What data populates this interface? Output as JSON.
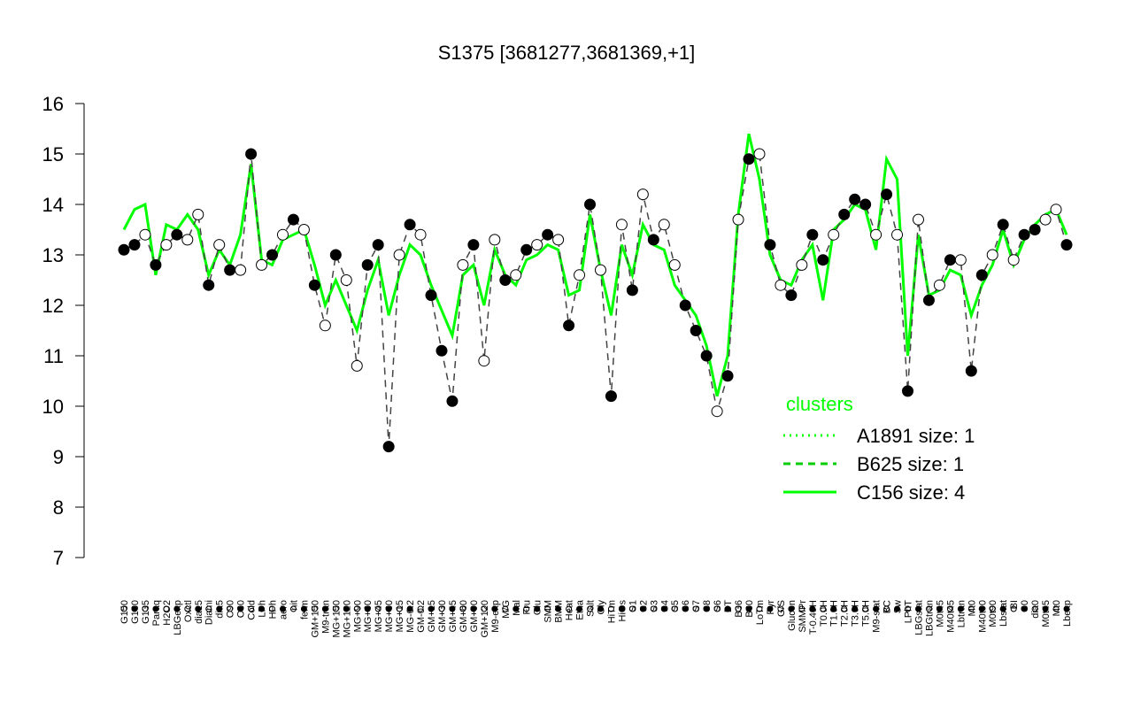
{
  "chart_data": {
    "type": "line",
    "title": "S1375 [3681277,3681369,+1]",
    "ylim": [
      7,
      16
    ],
    "yticks": [
      7,
      8,
      9,
      10,
      11,
      12,
      13,
      14,
      15,
      16
    ],
    "categories": [
      "G150",
      "G180",
      "G135",
      "Paraq",
      "H2O2",
      "LBGexp",
      "Oxctl",
      "dia15",
      "Diami",
      "dia5",
      "C90",
      "C30",
      "Cold",
      "LPh",
      "HPh",
      "aero",
      "nit",
      "ferm",
      "GM+150",
      "M9-tran",
      "MG+150",
      "MG+120",
      "MG+90",
      "MG+60",
      "MG+45",
      "MG+30",
      "MG+15",
      "MG-0.2",
      "GM-0.2",
      "GM+15",
      "GM+30",
      "GM+45",
      "GM+60",
      "GM+90",
      "GM+120",
      "M9-exp",
      "M/G",
      "Mal",
      "Fru",
      "Glu",
      "SMM",
      "BMM",
      "Heat",
      "Etha",
      "Salt",
      "Gly",
      "HiTm",
      "HiOs",
      "S1",
      "S2",
      "S3",
      "S4",
      "S5",
      "S6",
      "S7",
      "S8",
      "S6",
      "BT",
      "B36",
      "B60",
      "LoTm",
      "Pyr",
      "G/S",
      "Glucon",
      "SMMPr",
      "T-0.40H",
      "T0.0H",
      "T1.0H",
      "T2.0H",
      "T3.0H",
      "T5.0H",
      "M9-stat",
      "BC",
      "Sw",
      "LPhT",
      "LBGstat",
      "LBGtran",
      "M0t45",
      "M40t45",
      "Lbtran",
      "Mt0",
      "M40t90",
      "M0t90",
      "Lbstat",
      "BI",
      "S0",
      "dia0",
      "M0t45",
      "Mt0",
      "Lbexp"
    ],
    "legend_title": "clusters",
    "series": [
      {
        "name": "A1891 size: 1",
        "color": "#00ff00",
        "style": "dotted",
        "values": [
          13.1,
          13.2,
          13.4,
          12.8,
          13.2,
          13.4,
          13.3,
          13.8,
          12.4,
          13.2,
          12.7,
          12.7,
          15.0,
          12.8,
          13.0,
          13.4,
          13.7,
          13.5,
          12.4,
          11.6,
          13.0,
          12.5,
          10.8,
          12.8,
          13.2,
          9.2,
          13.0,
          13.6,
          13.4,
          12.2,
          11.1,
          10.1,
          12.8,
          13.2,
          10.9,
          13.3,
          12.5,
          12.6,
          13.1,
          13.2,
          13.4,
          13.3,
          11.6,
          12.6,
          14.0,
          12.7,
          10.2,
          13.6,
          12.3,
          14.2,
          13.3,
          13.6,
          12.8,
          12.0,
          11.5,
          11.0,
          9.9,
          10.6,
          13.7,
          14.9,
          15.0,
          13.2,
          12.4,
          12.2,
          12.8,
          13.4,
          12.9,
          13.4,
          13.8,
          14.1,
          14.0,
          13.4,
          14.2,
          13.4,
          10.3,
          13.7,
          12.1,
          12.4,
          12.9,
          12.9,
          10.7,
          12.6,
          13.0,
          13.6,
          12.9,
          13.4,
          13.5,
          13.7,
          13.9,
          13.2
        ]
      },
      {
        "name": "B625 size: 1",
        "color": "#00cc00",
        "style": "dashed",
        "values": [
          13.1,
          13.2,
          13.4,
          12.8,
          13.2,
          13.4,
          13.3,
          13.8,
          12.4,
          13.2,
          12.7,
          12.7,
          15.0,
          12.8,
          13.0,
          13.4,
          13.7,
          13.5,
          12.4,
          11.6,
          13.0,
          12.5,
          10.8,
          12.8,
          13.2,
          9.2,
          13.0,
          13.6,
          13.4,
          12.2,
          11.1,
          10.1,
          12.8,
          13.2,
          10.9,
          13.3,
          12.5,
          12.6,
          13.1,
          13.2,
          13.4,
          13.3,
          11.6,
          12.6,
          14.0,
          12.7,
          10.2,
          13.6,
          12.3,
          14.2,
          13.3,
          13.6,
          12.8,
          12.0,
          11.5,
          11.0,
          9.9,
          10.6,
          13.7,
          14.9,
          15.0,
          13.2,
          12.4,
          12.2,
          12.8,
          13.4,
          12.9,
          13.4,
          13.8,
          14.1,
          14.0,
          13.4,
          14.2,
          13.4,
          10.3,
          13.7,
          12.1,
          12.4,
          12.9,
          12.9,
          10.7,
          12.6,
          13.0,
          13.6,
          12.9,
          13.4,
          13.5,
          13.7,
          13.9,
          13.2
        ],
        "filled": [
          true,
          true,
          false,
          true,
          false,
          true,
          false,
          false,
          true,
          false,
          true,
          false,
          true,
          false,
          true,
          false,
          true,
          false,
          true,
          false,
          true,
          false,
          false,
          true,
          true,
          true,
          false,
          true,
          false,
          true,
          true,
          true,
          false,
          true,
          false,
          false,
          true,
          false,
          true,
          false,
          true,
          false,
          true,
          false,
          true,
          false,
          true,
          false,
          true,
          false,
          true,
          false,
          false,
          true,
          true,
          true,
          false,
          true,
          false,
          true,
          false,
          true,
          false,
          true,
          false,
          true,
          true,
          false,
          true,
          true,
          true,
          false,
          true,
          false,
          true,
          false,
          true,
          false,
          true,
          false,
          true,
          true,
          false,
          true,
          false,
          true,
          true,
          false,
          false,
          true
        ]
      },
      {
        "name": "C156 size: 4",
        "color": "#00ff00",
        "style": "solid",
        "values": [
          13.5,
          13.9,
          14.0,
          12.6,
          13.6,
          13.5,
          13.8,
          13.5,
          12.6,
          13.1,
          12.8,
          13.4,
          14.8,
          12.9,
          12.8,
          13.3,
          13.4,
          13.5,
          12.8,
          12.0,
          12.5,
          12.0,
          11.5,
          12.3,
          12.9,
          11.8,
          12.6,
          13.2,
          13.0,
          12.4,
          11.9,
          11.4,
          12.6,
          12.8,
          12.0,
          13.1,
          12.6,
          12.4,
          12.9,
          13.0,
          13.2,
          13.1,
          12.2,
          12.3,
          13.8,
          12.7,
          11.8,
          13.2,
          12.6,
          13.6,
          13.2,
          13.1,
          12.4,
          12.1,
          11.8,
          11.2,
          10.2,
          11.0,
          13.8,
          15.4,
          14.5,
          13.0,
          12.5,
          12.4,
          12.9,
          13.2,
          12.1,
          13.5,
          13.7,
          14.0,
          13.9,
          13.1,
          14.9,
          14.5,
          11.0,
          13.4,
          12.2,
          12.3,
          12.7,
          12.6,
          11.8,
          12.4,
          12.8,
          13.5,
          12.8,
          13.3,
          13.6,
          13.8,
          13.9,
          13.4
        ]
      }
    ],
    "legend_position": "bottom-right"
  }
}
